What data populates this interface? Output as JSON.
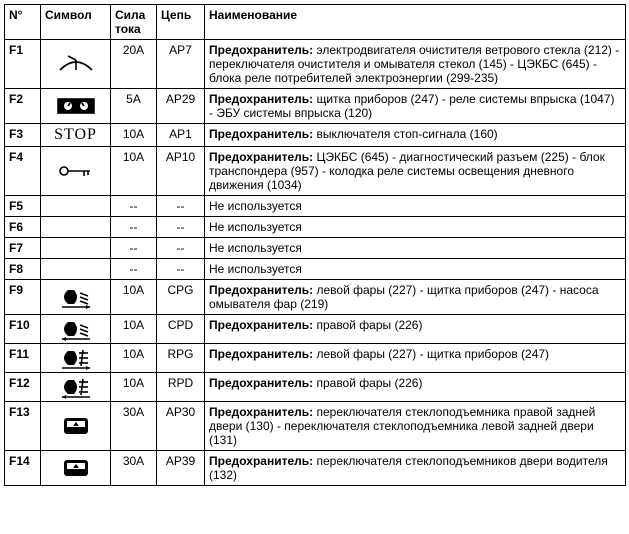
{
  "columns": {
    "num": "N°",
    "symbol": "Символ",
    "current": "Сила тока",
    "circuit": "Цепь",
    "desc": "Наименование"
  },
  "rows": [
    {
      "num": "F1",
      "current": "20A",
      "circuit": "AP7",
      "label": "Предохранитель:",
      "desc": " электродвигателя очистителя ветрового стекла (212) - переключателя очистителя и омывателя стекол (145) - ЦЭКБС (645) - блока реле потребителей электроэнергии (299-235)"
    },
    {
      "num": "F2",
      "current": "5A",
      "circuit": "AP29",
      "label": "Предохранитель:",
      "desc": " щитка приборов (247) - реле системы впрыска (1047) - ЭБУ системы впрыска (120)"
    },
    {
      "num": "F3",
      "current": "10A",
      "circuit": "AP1",
      "label": "Предохранитель:",
      "desc": " выключателя стоп-сигнала (160)"
    },
    {
      "num": "F4",
      "current": "10A",
      "circuit": "AP10",
      "label": "Предохранитель:",
      "desc": " ЦЭКБС (645) - диагностический разъем (225) - блок транспондера (957) - колодка реле системы освещения дневного движения (1034)"
    },
    {
      "num": "F5",
      "current": "--",
      "circuit": "--",
      "label": "",
      "desc": "Не используется"
    },
    {
      "num": "F6",
      "current": "--",
      "circuit": "--",
      "label": "",
      "desc": "Не используется"
    },
    {
      "num": "F7",
      "current": "--",
      "circuit": "--",
      "label": "",
      "desc": "Не используется"
    },
    {
      "num": "F8",
      "current": "--",
      "circuit": "--",
      "label": "",
      "desc": "Не используется"
    },
    {
      "num": "F9",
      "current": "10A",
      "circuit": "CPG",
      "label": "Предохранитель:",
      "desc": " левой фары (227) - щитка приборов (247) - насоса омывателя фар (219)"
    },
    {
      "num": "F10",
      "current": "10A",
      "circuit": "CPD",
      "label": "Предохранитель:",
      "desc": " правой фары (226)"
    },
    {
      "num": "F11",
      "current": "10A",
      "circuit": "RPG",
      "label": "Предохранитель:",
      "desc": " левой фары (227) - щитка приборов (247)"
    },
    {
      "num": "F12",
      "current": "10A",
      "circuit": "RPD",
      "label": "Предохранитель:",
      "desc": " правой фары (226)"
    },
    {
      "num": "F13",
      "current": "30A",
      "circuit": "AP30",
      "label": "Предохранитель:",
      "desc": " переключателя стеклоподъемника правой задней двери (130) - переключателя стеклоподъемника левой задней двери (131)"
    },
    {
      "num": "F14",
      "current": "30A",
      "circuit": "AP39",
      "label": "Предохранитель:",
      "desc": " переключателя стеклоподъемников двери водителя (132)"
    }
  ],
  "icons": {
    "F3": "STOP"
  }
}
